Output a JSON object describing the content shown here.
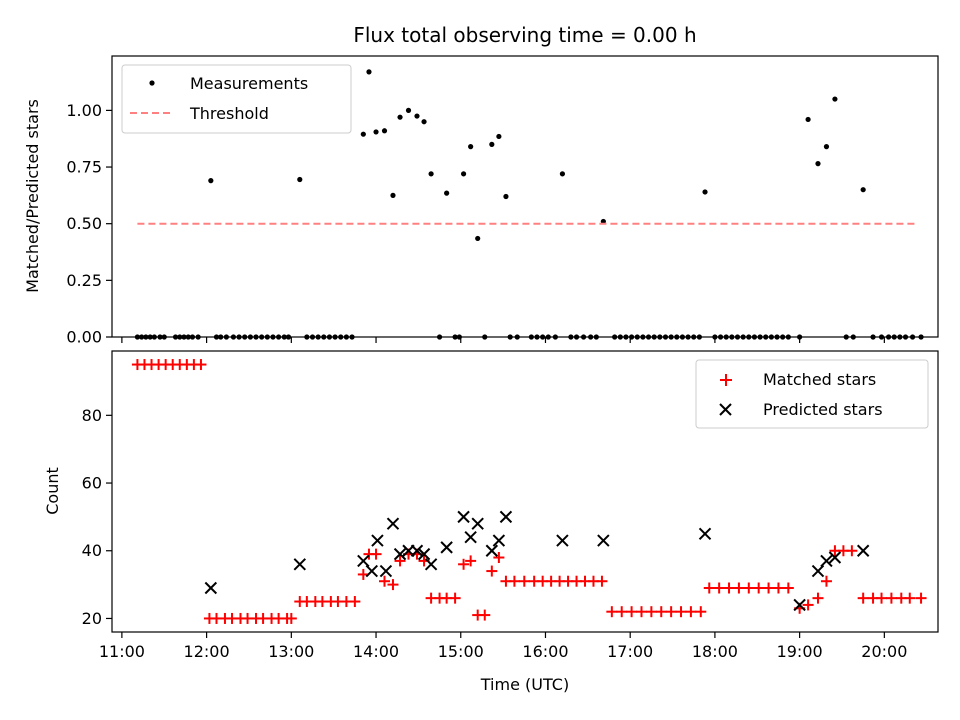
{
  "title": "Flux total observing time = 0.00 h",
  "xlabel": "Time (UTC)",
  "x_tick_labels": [
    "11:00",
    "12:00",
    "13:00",
    "14:00",
    "15:00",
    "16:00",
    "17:00",
    "18:00",
    "19:00",
    "20:00"
  ],
  "colors": {
    "measurements": "#000000",
    "threshold": "#ff8080",
    "matched": "#ff0000",
    "predicted": "#000000"
  },
  "chart_data": [
    {
      "type": "scatter",
      "ylabel": "Matched/Predicted stars",
      "xlim": [
        "10:53",
        "20:38"
      ],
      "ylim": [
        0,
        1.24
      ],
      "y_ticks": [
        "0.00",
        "0.25",
        "0.50",
        "0.75",
        "1.00"
      ],
      "legend_placement": "upper-left",
      "legend": [
        "Measurements",
        "Threshold"
      ],
      "series": [
        {
          "name": "Measurements",
          "marker": "dot",
          "points": [
            [
              "11:11",
              0
            ],
            [
              "11:14",
              0
            ],
            [
              "11:17",
              0
            ],
            [
              "11:20",
              0
            ],
            [
              "11:23",
              0
            ],
            [
              "11:27",
              0
            ],
            [
              "11:30",
              0
            ],
            [
              "11:38",
              0
            ],
            [
              "11:41",
              0
            ],
            [
              "11:44",
              0
            ],
            [
              "11:47",
              0
            ],
            [
              "11:50",
              0
            ],
            [
              "11:54",
              0
            ],
            [
              "12:03",
              0.69
            ],
            [
              "12:07",
              0
            ],
            [
              "12:10",
              0
            ],
            [
              "12:14",
              0
            ],
            [
              "12:19",
              0
            ],
            [
              "12:23",
              0
            ],
            [
              "12:27",
              0
            ],
            [
              "12:31",
              0
            ],
            [
              "12:35",
              0
            ],
            [
              "12:39",
              0
            ],
            [
              "12:43",
              0
            ],
            [
              "12:47",
              0
            ],
            [
              "12:51",
              0
            ],
            [
              "12:55",
              0
            ],
            [
              "12:58",
              0
            ],
            [
              "13:06",
              0.695
            ],
            [
              "13:11",
              0
            ],
            [
              "13:15",
              0
            ],
            [
              "13:19",
              0
            ],
            [
              "13:23",
              0
            ],
            [
              "13:27",
              0
            ],
            [
              "13:31",
              0
            ],
            [
              "13:35",
              0
            ],
            [
              "13:39",
              0
            ],
            [
              "13:43",
              0
            ],
            [
              "13:51",
              0.895
            ],
            [
              "13:55",
              1.17
            ],
            [
              "14:00",
              0.905
            ],
            [
              "14:06",
              0.91
            ],
            [
              "14:12",
              0.625
            ],
            [
              "14:17",
              0.97
            ],
            [
              "14:23",
              1.0
            ],
            [
              "14:29",
              0.975
            ],
            [
              "14:34",
              0.95
            ],
            [
              "14:39",
              0.72
            ],
            [
              "14:45",
              0
            ],
            [
              "14:50",
              0.635
            ],
            [
              "14:56",
              0
            ],
            [
              "14:59",
              0
            ],
            [
              "15:02",
              0.72
            ],
            [
              "15:07",
              0.84
            ],
            [
              "15:12",
              0.435
            ],
            [
              "15:17",
              0
            ],
            [
              "15:22",
              0.85
            ],
            [
              "15:27",
              0.885
            ],
            [
              "15:32",
              0.62
            ],
            [
              "15:35",
              0
            ],
            [
              "15:40",
              0
            ],
            [
              "15:50",
              0
            ],
            [
              "15:54",
              0
            ],
            [
              "15:58",
              0
            ],
            [
              "16:02",
              0
            ],
            [
              "16:07",
              0
            ],
            [
              "16:12",
              0.72
            ],
            [
              "16:18",
              0
            ],
            [
              "16:22",
              0
            ],
            [
              "16:27",
              0
            ],
            [
              "16:32",
              0
            ],
            [
              "16:36",
              0
            ],
            [
              "16:41",
              0.51
            ],
            [
              "16:49",
              0
            ],
            [
              "16:53",
              0
            ],
            [
              "16:57",
              0
            ],
            [
              "17:01",
              0
            ],
            [
              "17:05",
              0
            ],
            [
              "17:09",
              0
            ],
            [
              "17:13",
              0
            ],
            [
              "17:17",
              0
            ],
            [
              "17:21",
              0
            ],
            [
              "17:25",
              0
            ],
            [
              "17:29",
              0
            ],
            [
              "17:33",
              0
            ],
            [
              "17:37",
              0
            ],
            [
              "17:41",
              0
            ],
            [
              "17:45",
              0
            ],
            [
              "17:49",
              0
            ],
            [
              "17:53",
              0.64
            ],
            [
              "18:00",
              0
            ],
            [
              "18:04",
              0
            ],
            [
              "18:08",
              0
            ],
            [
              "18:12",
              0
            ],
            [
              "18:16",
              0
            ],
            [
              "18:20",
              0
            ],
            [
              "18:24",
              0
            ],
            [
              "18:28",
              0
            ],
            [
              "18:32",
              0
            ],
            [
              "18:36",
              0
            ],
            [
              "18:40",
              0
            ],
            [
              "18:44",
              0
            ],
            [
              "18:48",
              0
            ],
            [
              "18:52",
              0
            ],
            [
              "19:00",
              0
            ],
            [
              "19:06",
              0.96
            ],
            [
              "19:13",
              0.765
            ],
            [
              "19:19",
              0.84
            ],
            [
              "19:25",
              1.05
            ],
            [
              "19:33",
              0
            ],
            [
              "19:38",
              0
            ],
            [
              "19:45",
              0.65
            ],
            [
              "19:52",
              0
            ],
            [
              "19:58",
              0
            ],
            [
              "20:03",
              0
            ],
            [
              "20:07",
              0
            ],
            [
              "20:11",
              0
            ],
            [
              "20:15",
              0
            ],
            [
              "20:20",
              0
            ],
            [
              "20:26",
              0
            ]
          ]
        },
        {
          "name": "Threshold",
          "style": "dashed",
          "points": [
            [
              "11:11",
              0.5
            ],
            [
              "20:22",
              0.5
            ]
          ]
        }
      ]
    },
    {
      "type": "scatter",
      "ylabel": "Count",
      "xlim": [
        "10:53",
        "20:38"
      ],
      "ylim": [
        16,
        99
      ],
      "y_ticks": [
        "20",
        "40",
        "60",
        "80"
      ],
      "legend_placement": "upper-right",
      "legend": [
        "Matched stars",
        "Predicted stars"
      ],
      "series": [
        {
          "name": "Matched stars",
          "marker": "plus",
          "points": [
            [
              "11:11",
              95
            ],
            [
              "11:16",
              95
            ],
            [
              "11:21",
              95
            ],
            [
              "11:26",
              95
            ],
            [
              "11:31",
              95
            ],
            [
              "11:36",
              95
            ],
            [
              "11:41",
              95
            ],
            [
              "11:46",
              95
            ],
            [
              "11:51",
              95
            ],
            [
              "11:56",
              95
            ],
            [
              "12:02",
              20
            ],
            [
              "12:07",
              20
            ],
            [
              "12:13",
              20
            ],
            [
              "12:18",
              20
            ],
            [
              "12:24",
              20
            ],
            [
              "12:29",
              20
            ],
            [
              "12:35",
              20
            ],
            [
              "12:40",
              20
            ],
            [
              "12:46",
              20
            ],
            [
              "12:51",
              20
            ],
            [
              "12:57",
              20
            ],
            [
              "13:00",
              20
            ],
            [
              "13:06",
              25
            ],
            [
              "13:11",
              25
            ],
            [
              "13:17",
              25
            ],
            [
              "13:22",
              25
            ],
            [
              "13:28",
              25
            ],
            [
              "13:33",
              25
            ],
            [
              "13:39",
              25
            ],
            [
              "13:45",
              25
            ],
            [
              "13:51",
              33
            ],
            [
              "13:55",
              39
            ],
            [
              "14:00",
              39
            ],
            [
              "14:06",
              31
            ],
            [
              "14:12",
              30
            ],
            [
              "14:17",
              37
            ],
            [
              "14:23",
              39
            ],
            [
              "14:29",
              39
            ],
            [
              "14:34",
              37
            ],
            [
              "14:39",
              26
            ],
            [
              "14:45",
              26
            ],
            [
              "14:50",
              26
            ],
            [
              "14:56",
              26
            ],
            [
              "15:02",
              36
            ],
            [
              "15:07",
              37
            ],
            [
              "15:12",
              21
            ],
            [
              "15:17",
              21
            ],
            [
              "15:22",
              34
            ],
            [
              "15:27",
              38
            ],
            [
              "15:32",
              31
            ],
            [
              "15:38",
              31
            ],
            [
              "15:45",
              31
            ],
            [
              "15:52",
              31
            ],
            [
              "15:58",
              31
            ],
            [
              "16:04",
              31
            ],
            [
              "16:10",
              31
            ],
            [
              "16:16",
              31
            ],
            [
              "16:22",
              31
            ],
            [
              "16:28",
              31
            ],
            [
              "16:34",
              31
            ],
            [
              "16:40",
              31
            ],
            [
              "16:47",
              22
            ],
            [
              "16:54",
              22
            ],
            [
              "17:01",
              22
            ],
            [
              "17:08",
              22
            ],
            [
              "17:15",
              22
            ],
            [
              "17:22",
              22
            ],
            [
              "17:29",
              22
            ],
            [
              "17:36",
              22
            ],
            [
              "17:43",
              22
            ],
            [
              "17:50",
              22
            ],
            [
              "17:56",
              29
            ],
            [
              "18:03",
              29
            ],
            [
              "18:10",
              29
            ],
            [
              "18:17",
              29
            ],
            [
              "18:24",
              29
            ],
            [
              "18:31",
              29
            ],
            [
              "18:38",
              29
            ],
            [
              "18:45",
              29
            ],
            [
              "18:52",
              29
            ],
            [
              "19:00",
              23
            ],
            [
              "19:06",
              24
            ],
            [
              "19:13",
              26
            ],
            [
              "19:19",
              31
            ],
            [
              "19:25",
              40
            ],
            [
              "19:31",
              40
            ],
            [
              "19:37",
              40
            ],
            [
              "19:45",
              26
            ],
            [
              "19:52",
              26
            ],
            [
              "19:58",
              26
            ],
            [
              "20:05",
              26
            ],
            [
              "20:12",
              26
            ],
            [
              "20:18",
              26
            ],
            [
              "20:26",
              26
            ]
          ]
        },
        {
          "name": "Predicted stars",
          "marker": "x",
          "points": [
            [
              "12:03",
              29
            ],
            [
              "13:06",
              36
            ],
            [
              "13:51",
              37
            ],
            [
              "13:57",
              34
            ],
            [
              "14:01",
              43
            ],
            [
              "14:07",
              34
            ],
            [
              "14:12",
              48
            ],
            [
              "14:17",
              39
            ],
            [
              "14:23",
              40
            ],
            [
              "14:29",
              40
            ],
            [
              "14:34",
              39
            ],
            [
              "14:39",
              36
            ],
            [
              "14:50",
              41
            ],
            [
              "15:02",
              50
            ],
            [
              "15:07",
              44
            ],
            [
              "15:12",
              48
            ],
            [
              "15:22",
              40
            ],
            [
              "15:27",
              43
            ],
            [
              "15:32",
              50
            ],
            [
              "16:12",
              43
            ],
            [
              "16:41",
              43
            ],
            [
              "17:53",
              45
            ],
            [
              "19:00",
              24
            ],
            [
              "19:13",
              34
            ],
            [
              "19:19",
              37
            ],
            [
              "19:25",
              38
            ],
            [
              "19:45",
              40
            ]
          ]
        }
      ]
    }
  ]
}
